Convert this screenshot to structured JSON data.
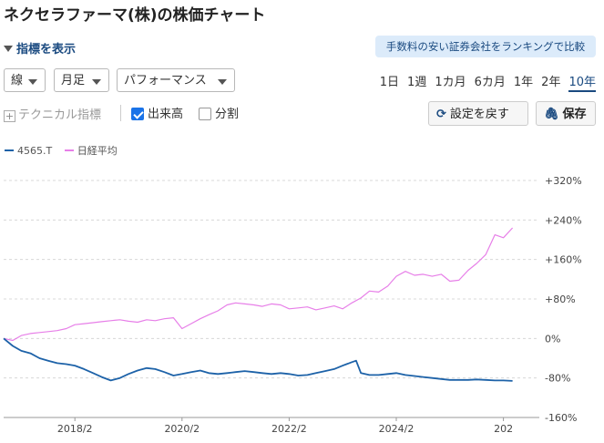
{
  "header": {
    "title": "ネクセラファーマ(株)の株価チャート"
  },
  "indicator_toggle": {
    "label": "指標を表示"
  },
  "promo": {
    "label": "手数料の安い証券会社をランキングで比較"
  },
  "controls": {
    "chart_type": "線",
    "interval": "月足",
    "mode": "パフォーマンス"
  },
  "periods": {
    "items": [
      "1日",
      "1週",
      "1カ月",
      "6カ月",
      "1年",
      "2年",
      "10年"
    ],
    "active": "10年"
  },
  "options": {
    "technical_label": "テクニカル指標",
    "volume_label": "出来高",
    "volume_checked": true,
    "split_label": "分割",
    "split_checked": false
  },
  "buttons": {
    "reset_label": "設定を戻す",
    "save_label": "保存"
  },
  "colors": {
    "stock": "#1d62a8",
    "nikkei": "#e77fe8",
    "accent": "#1a4a80"
  },
  "chart_data": {
    "type": "line",
    "title": "",
    "xlabel": "",
    "ylabel": "",
    "ylim": [
      -160,
      320
    ],
    "y_ticks": [
      320,
      240,
      160,
      80,
      0,
      -80,
      -160
    ],
    "y_tick_labels": [
      "+320%",
      "+240%",
      "+160%",
      "+80%",
      "0%",
      "-80%",
      "-160%"
    ],
    "x_range": [
      2016.75,
      2026.75
    ],
    "x_ticks": [
      2018.08,
      2020.08,
      2022.08,
      2024.08,
      2026.08
    ],
    "x_tick_labels": [
      "2018/2",
      "2020/2",
      "2022/2",
      "2024/2",
      "202"
    ],
    "legend": "top-left",
    "grid": true,
    "series": [
      {
        "name": "4565.T",
        "color": "#1d62a8",
        "x": [
          2016.75,
          2016.92,
          2017.08,
          2017.25,
          2017.42,
          2017.58,
          2017.75,
          2017.92,
          2018.08,
          2018.25,
          2018.42,
          2018.58,
          2018.75,
          2018.92,
          2019.08,
          2019.25,
          2019.42,
          2019.58,
          2019.75,
          2019.92,
          2020.08,
          2020.25,
          2020.42,
          2020.58,
          2020.75,
          2020.92,
          2021.08,
          2021.25,
          2021.42,
          2021.58,
          2021.75,
          2021.92,
          2022.08,
          2022.25,
          2022.42,
          2022.58,
          2022.75,
          2022.92,
          2023.08,
          2023.25,
          2023.33,
          2023.42,
          2023.58,
          2023.75,
          2023.92,
          2024.08,
          2024.25,
          2024.42,
          2024.58,
          2024.75,
          2024.92,
          2025.08,
          2025.25,
          2025.42,
          2025.58,
          2025.75,
          2025.92,
          2026.08,
          2026.25
        ],
        "values": [
          0,
          -15,
          -25,
          -30,
          -40,
          -45,
          -50,
          -52,
          -55,
          -62,
          -70,
          -78,
          -85,
          -80,
          -72,
          -65,
          -60,
          -62,
          -68,
          -75,
          -72,
          -68,
          -65,
          -70,
          -72,
          -70,
          -68,
          -66,
          -68,
          -70,
          -72,
          -70,
          -72,
          -75,
          -74,
          -70,
          -66,
          -62,
          -55,
          -48,
          -45,
          -70,
          -74,
          -74,
          -72,
          -70,
          -74,
          -76,
          -78,
          -80,
          -82,
          -84,
          -84,
          -84,
          -83,
          -84,
          -85,
          -85,
          -86
        ]
      },
      {
        "name": "日経平均",
        "color": "#e77fe8",
        "x": [
          2016.75,
          2016.92,
          2017.08,
          2017.25,
          2017.42,
          2017.58,
          2017.75,
          2017.92,
          2018.08,
          2018.25,
          2018.42,
          2018.58,
          2018.75,
          2018.92,
          2019.08,
          2019.25,
          2019.42,
          2019.58,
          2019.75,
          2019.92,
          2020.08,
          2020.25,
          2020.42,
          2020.58,
          2020.75,
          2020.92,
          2021.08,
          2021.25,
          2021.42,
          2021.58,
          2021.75,
          2021.92,
          2022.08,
          2022.25,
          2022.42,
          2022.58,
          2022.75,
          2022.92,
          2023.08,
          2023.25,
          2023.42,
          2023.58,
          2023.75,
          2023.92,
          2024.08,
          2024.25,
          2024.42,
          2024.58,
          2024.75,
          2024.92,
          2025.08,
          2025.25,
          2025.42,
          2025.58,
          2025.75,
          2025.92,
          2026.08,
          2026.25
        ],
        "values": [
          0,
          -4,
          6,
          10,
          12,
          14,
          16,
          20,
          28,
          30,
          32,
          34,
          36,
          38,
          35,
          33,
          38,
          36,
          40,
          42,
          20,
          30,
          40,
          48,
          56,
          68,
          72,
          70,
          68,
          65,
          70,
          68,
          60,
          62,
          64,
          58,
          62,
          66,
          60,
          72,
          82,
          96,
          94,
          106,
          126,
          136,
          128,
          130,
          126,
          130,
          116,
          118,
          138,
          152,
          170,
          210,
          204,
          224
        ]
      }
    ]
  }
}
